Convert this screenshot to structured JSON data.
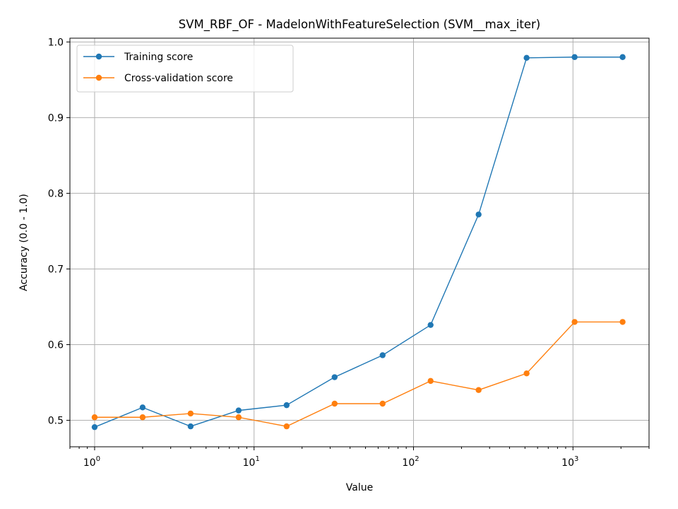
{
  "chart_data": {
    "type": "line",
    "title": "SVM_RBF_OF - MadelonWithFeatureSelection (SVM__max_iter)",
    "xlabel": "Value",
    "ylabel": "Accuracy (0.0 - 1.0)",
    "xscale": "log",
    "xlim": [
      0.7,
      3000
    ],
    "ylim": [
      0.465,
      1.005
    ],
    "grid": true,
    "legend_position": "top-left",
    "x": [
      1,
      2,
      4,
      8,
      16,
      32,
      64,
      128,
      256,
      512,
      1024,
      2048
    ],
    "series": [
      {
        "name": "Training score",
        "color": "#1f77b4",
        "values": [
          0.491,
          0.517,
          0.492,
          0.513,
          0.52,
          0.557,
          0.586,
          0.626,
          0.772,
          0.979,
          0.98,
          0.98
        ]
      },
      {
        "name": "Cross-validation score",
        "color": "#ff7f0e",
        "values": [
          0.504,
          0.504,
          0.509,
          0.504,
          0.492,
          0.522,
          0.522,
          0.552,
          0.54,
          0.562,
          0.63,
          0.63
        ]
      }
    ],
    "yticks": [
      "0.5",
      "0.6",
      "0.7",
      "0.8",
      "0.9",
      "1.0"
    ],
    "xticks": [
      {
        "value": 1,
        "base": "10",
        "exp": "0"
      },
      {
        "value": 10,
        "base": "10",
        "exp": "1"
      },
      {
        "value": 100,
        "base": "10",
        "exp": "2"
      },
      {
        "value": 1000,
        "base": "10",
        "exp": "3"
      }
    ]
  }
}
